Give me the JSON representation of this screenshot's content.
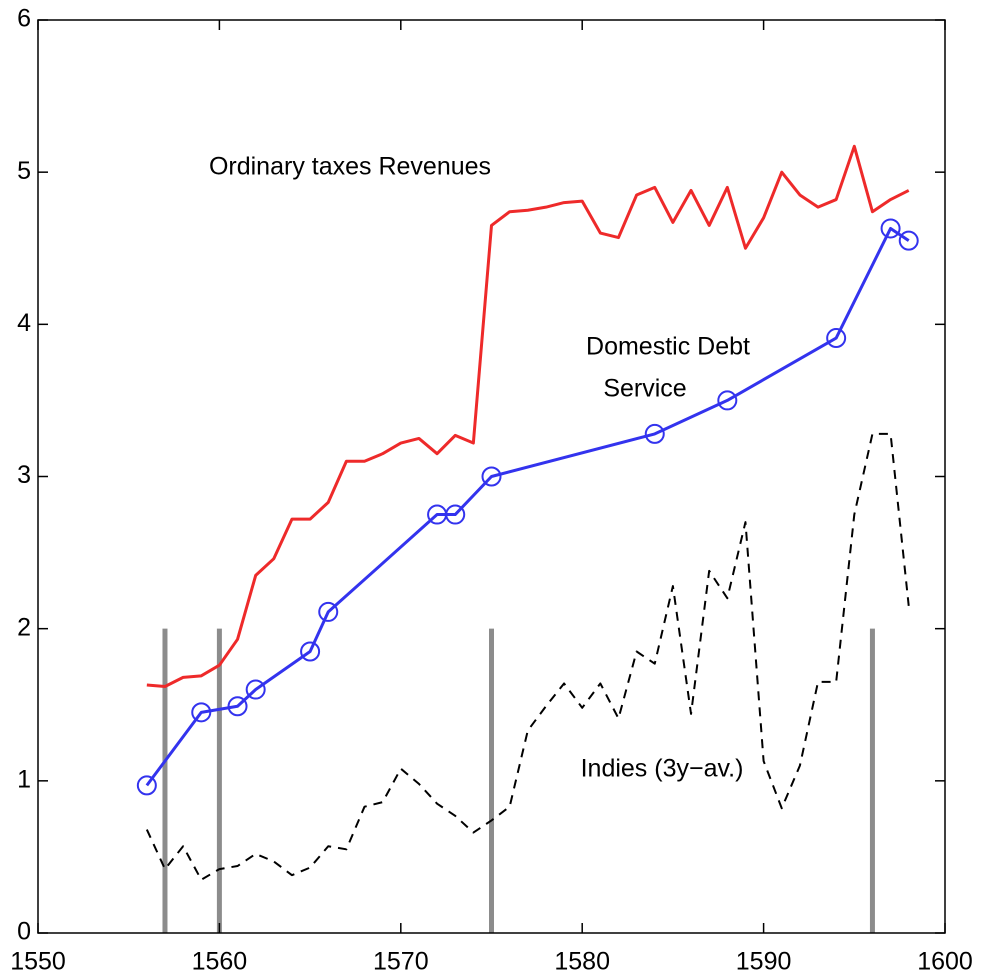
{
  "chart_data": {
    "type": "line",
    "xlim": [
      1550,
      1600
    ],
    "xticks": [
      1550,
      1560,
      1570,
      1580,
      1590,
      1600
    ],
    "ylim": [
      0,
      6
    ],
    "yticks": [
      0,
      1,
      2,
      3,
      4,
      5,
      6
    ],
    "annotations": [
      "Ordinary taxes Revenues",
      "Domestic Debt",
      "Service",
      "Indies (3y−av.)"
    ],
    "series": [
      {
        "color": "#ee2a2a",
        "line_style": "solid",
        "marker": "none",
        "x": [
          1556,
          1557,
          1558,
          1559,
          1560,
          1561,
          1562,
          1563,
          1564,
          1565,
          1566,
          1567,
          1568,
          1569,
          1570,
          1571,
          1572,
          1573,
          1574,
          1575,
          1576,
          1577,
          1578,
          1579,
          1580,
          1581,
          1582,
          1583,
          1584,
          1585,
          1586,
          1587,
          1588,
          1589,
          1590,
          1591,
          1592,
          1593,
          1594,
          1595,
          1596,
          1597,
          1598
        ],
        "values": [
          1.63,
          1.62,
          1.68,
          1.69,
          1.76,
          1.93,
          2.35,
          2.46,
          2.72,
          2.72,
          2.83,
          3.1,
          3.1,
          3.15,
          3.22,
          3.25,
          3.15,
          3.27,
          3.22,
          4.65,
          4.74,
          4.75,
          4.77,
          4.8,
          4.81,
          4.6,
          4.57,
          4.85,
          4.9,
          4.67,
          4.88,
          4.65,
          4.9,
          4.5,
          4.7,
          5.0,
          4.85,
          4.77,
          4.82,
          5.17,
          4.74,
          4.82,
          4.88
        ]
      },
      {
        "color": "#3333ee",
        "line_style": "solid",
        "marker": "circle",
        "x": [
          1556,
          1559,
          1561,
          1562,
          1565,
          1566,
          1572,
          1573,
          1575,
          1584,
          1588,
          1594,
          1597,
          1598
        ],
        "values": [
          0.97,
          1.45,
          1.49,
          1.6,
          1.85,
          2.11,
          2.75,
          2.75,
          3.0,
          3.28,
          3.5,
          3.91,
          4.63,
          4.55
        ]
      },
      {
        "color": "#000000",
        "line_style": "dashed",
        "marker": "none",
        "x": [
          1556,
          1557,
          1558,
          1559,
          1560,
          1561,
          1562,
          1563,
          1564,
          1565,
          1566,
          1567,
          1568,
          1569,
          1570,
          1571,
          1572,
          1573,
          1574,
          1575,
          1576,
          1577,
          1578,
          1579,
          1580,
          1581,
          1582,
          1583,
          1584,
          1585,
          1586,
          1587,
          1588,
          1589,
          1590,
          1591,
          1592,
          1593,
          1594,
          1595,
          1596,
          1597,
          1598
        ],
        "values": [
          0.68,
          0.42,
          0.57,
          0.35,
          0.42,
          0.44,
          0.52,
          0.47,
          0.38,
          0.43,
          0.57,
          0.55,
          0.83,
          0.86,
          1.08,
          0.98,
          0.85,
          0.77,
          0.66,
          0.74,
          0.83,
          1.33,
          1.49,
          1.64,
          1.48,
          1.64,
          1.41,
          1.85,
          1.77,
          2.28,
          1.44,
          2.38,
          2.2,
          2.7,
          1.13,
          0.82,
          1.1,
          1.65,
          1.65,
          2.75,
          3.28,
          3.28,
          2.15
        ]
      }
    ],
    "vlines": {
      "x": [
        1557,
        1560,
        1575,
        1596
      ],
      "ymax": 2,
      "color": "#8c8c8c"
    }
  }
}
